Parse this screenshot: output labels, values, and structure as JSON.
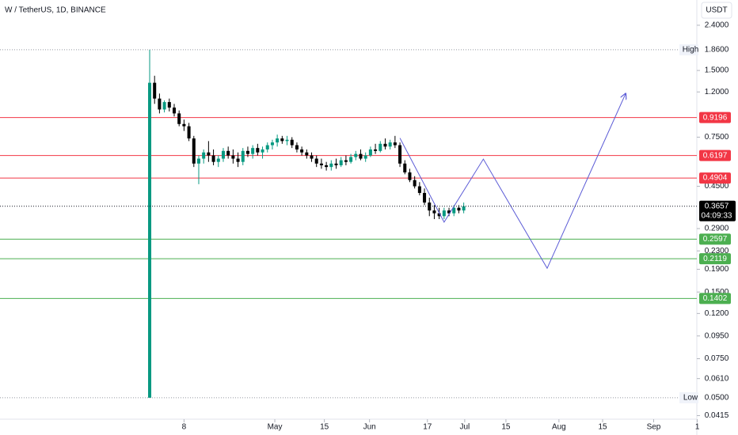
{
  "chart_data": {
    "type": "candlestick",
    "title": "W / TetherUS, 1D, BINANCE",
    "currency": "USDT",
    "log_scale": true,
    "up_color": "#089981",
    "down_color": "#000000",
    "xlim": [
      -30.5,
      111.5
    ],
    "xticks": [
      {
        "value": 7,
        "label": "8"
      },
      {
        "value": 25.5,
        "label": "May"
      },
      {
        "value": 35.6,
        "label": "15"
      },
      {
        "value": 44.8,
        "label": "Jun"
      },
      {
        "value": 56.6,
        "label": "17"
      },
      {
        "value": 64.2,
        "label": "Jul"
      },
      {
        "value": 72.6,
        "label": "15"
      },
      {
        "value": 83.4,
        "label": "Aug"
      },
      {
        "value": 92.3,
        "label": "15"
      },
      {
        "value": 102.7,
        "label": "Sep"
      },
      {
        "value": 111.6,
        "label": "1"
      }
    ],
    "ylim": [
      0.04,
      3.12
    ],
    "yticks": [
      {
        "value": 2.4,
        "label": "2.4000"
      },
      {
        "value": 1.5,
        "label": "1.5000"
      },
      {
        "value": 1.2,
        "label": "1.2000"
      },
      {
        "value": 0.75,
        "label": "0.7500"
      },
      {
        "value": 0.45,
        "label": "0.4500"
      },
      {
        "value": 0.29,
        "label": "0.2900"
      },
      {
        "value": 0.23,
        "label": "0.2300"
      },
      {
        "value": 0.19,
        "label": "0.1900"
      },
      {
        "value": 0.15,
        "label": "0.1500"
      },
      {
        "value": 0.12,
        "label": "0.1200"
      },
      {
        "value": 0.095,
        "label": "0.0950"
      },
      {
        "value": 0.075,
        "label": "0.0750"
      },
      {
        "value": 0.061,
        "label": "0.0610"
      },
      {
        "value": 0.0415,
        "label": "0.0415"
      }
    ],
    "x": [
      0,
      1,
      2,
      3,
      4,
      5,
      6,
      7,
      8,
      9,
      10,
      11,
      12,
      13,
      14,
      15,
      16,
      17,
      18,
      19,
      20,
      21,
      22,
      23,
      24,
      25,
      26,
      27,
      28,
      29,
      30,
      31,
      32,
      33,
      34,
      35,
      36,
      37,
      38,
      39,
      40,
      41,
      42,
      43,
      44,
      45,
      46,
      47,
      48,
      49,
      50,
      51,
      52,
      53,
      54,
      55,
      56,
      57,
      58,
      59,
      60,
      61,
      62,
      63,
      64
    ],
    "open": [
      0.05,
      1.32,
      1.12,
      1.0,
      1.08,
      1.02,
      0.96,
      0.86,
      0.84,
      0.74,
      0.57,
      0.6,
      0.64,
      0.62,
      0.58,
      0.6,
      0.65,
      0.62,
      0.6,
      0.58,
      0.65,
      0.63,
      0.67,
      0.64,
      0.66,
      0.69,
      0.71,
      0.74,
      0.72,
      0.73,
      0.69,
      0.66,
      0.64,
      0.62,
      0.6,
      0.57,
      0.56,
      0.55,
      0.57,
      0.56,
      0.59,
      0.58,
      0.61,
      0.63,
      0.6,
      0.62,
      0.66,
      0.65,
      0.7,
      0.68,
      0.71,
      0.69,
      0.57,
      0.52,
      0.48,
      0.45,
      0.42,
      0.38,
      0.35,
      0.34,
      0.33,
      0.35,
      0.34,
      0.36,
      0.35
    ],
    "high": [
      1.86,
      1.42,
      1.18,
      1.1,
      1.12,
      1.06,
      0.99,
      0.9,
      0.87,
      0.76,
      0.62,
      0.66,
      0.72,
      0.66,
      0.62,
      0.67,
      0.68,
      0.66,
      0.64,
      0.67,
      0.68,
      0.69,
      0.7,
      0.68,
      0.71,
      0.73,
      0.77,
      0.76,
      0.76,
      0.75,
      0.71,
      0.68,
      0.66,
      0.64,
      0.62,
      0.6,
      0.58,
      0.59,
      0.6,
      0.61,
      0.62,
      0.63,
      0.65,
      0.66,
      0.64,
      0.68,
      0.7,
      0.72,
      0.74,
      0.73,
      0.76,
      0.71,
      0.59,
      0.54,
      0.5,
      0.47,
      0.44,
      0.4,
      0.37,
      0.36,
      0.36,
      0.36,
      0.37,
      0.37,
      0.38
    ],
    "low": [
      0.05,
      1.06,
      0.96,
      0.97,
      0.98,
      0.93,
      0.84,
      0.8,
      0.72,
      0.55,
      0.46,
      0.57,
      0.58,
      0.56,
      0.55,
      0.58,
      0.6,
      0.57,
      0.55,
      0.56,
      0.61,
      0.6,
      0.62,
      0.6,
      0.64,
      0.66,
      0.68,
      0.7,
      0.69,
      0.67,
      0.64,
      0.62,
      0.6,
      0.58,
      0.55,
      0.54,
      0.53,
      0.53,
      0.54,
      0.55,
      0.56,
      0.57,
      0.59,
      0.59,
      0.58,
      0.61,
      0.63,
      0.64,
      0.66,
      0.66,
      0.67,
      0.55,
      0.51,
      0.47,
      0.44,
      0.41,
      0.37,
      0.33,
      0.32,
      0.32,
      0.32,
      0.33,
      0.33,
      0.34,
      0.34
    ],
    "close": [
      1.32,
      1.12,
      1.0,
      1.08,
      1.02,
      0.96,
      0.86,
      0.84,
      0.74,
      0.57,
      0.6,
      0.64,
      0.62,
      0.58,
      0.6,
      0.65,
      0.62,
      0.6,
      0.58,
      0.65,
      0.63,
      0.67,
      0.64,
      0.66,
      0.69,
      0.71,
      0.74,
      0.72,
      0.73,
      0.69,
      0.66,
      0.64,
      0.62,
      0.6,
      0.57,
      0.56,
      0.55,
      0.57,
      0.56,
      0.59,
      0.58,
      0.61,
      0.63,
      0.6,
      0.62,
      0.66,
      0.65,
      0.7,
      0.68,
      0.71,
      0.69,
      0.57,
      0.52,
      0.48,
      0.45,
      0.42,
      0.38,
      0.35,
      0.34,
      0.33,
      0.35,
      0.34,
      0.36,
      0.35,
      0.3657
    ],
    "levels": [
      {
        "value": 0.9196,
        "color": "#f23645"
      },
      {
        "value": 0.6197,
        "color": "#f23645"
      },
      {
        "value": 0.4904,
        "color": "#f23645"
      },
      {
        "value": 0.2597,
        "color": "#4caf50"
      },
      {
        "value": 0.2119,
        "color": "#4caf50"
      },
      {
        "value": 0.1402,
        "color": "#4caf50"
      }
    ],
    "high_marker": {
      "label": "High",
      "price": {
        "value": 1.86,
        "label": "1.8600"
      }
    },
    "low_marker": {
      "label": "Low",
      "price": {
        "value": 0.05,
        "label": "0.0500"
      }
    },
    "last_price": {
      "value": 0.3657,
      "countdown": "04:09:33"
    },
    "projection": {
      "color": "#5b5bd6",
      "x": [
        51,
        60,
        68,
        81,
        97
      ],
      "values": [
        0.743,
        0.31,
        0.597,
        0.192,
        1.18
      ]
    }
  }
}
